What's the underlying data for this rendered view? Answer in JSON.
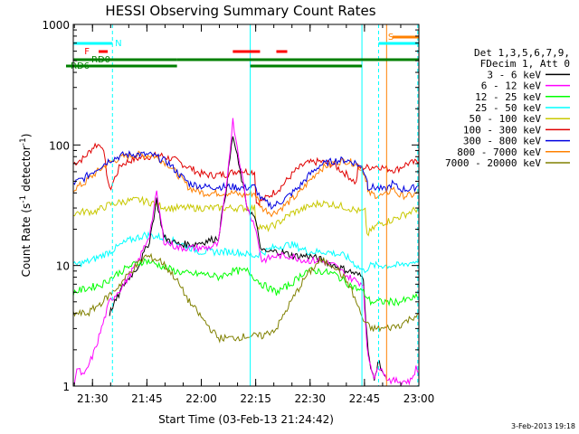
{
  "chart_data": {
    "type": "line",
    "title": "HESSI Observing Summary Count Rates",
    "xlabel": "Start Time (03-Feb-13 21:24:42)",
    "ylabel": "Count Rate (s⁻¹ detector⁻¹)",
    "ylabel_main": "Count Rate (s",
    "ylabel_sup1": "-1",
    "ylabel_mid": " detector",
    "ylabel_sup2": "-1",
    "ylabel_end": ")",
    "timestamp": "3-Feb-2013 19:18",
    "yscale": "log",
    "ylim": [
      1,
      1000
    ],
    "xlim_minutes": [
      0,
      95.3
    ],
    "x_ticks": [
      {
        "label": "21:30",
        "min": 5.3
      },
      {
        "label": "21:45",
        "min": 20.3
      },
      {
        "label": "22:00",
        "min": 35.3
      },
      {
        "label": "22:15",
        "min": 50.3
      },
      {
        "label": "22:30",
        "min": 65.3
      },
      {
        "label": "22:45",
        "min": 80.3
      },
      {
        "label": "23:00",
        "min": 95.3
      }
    ],
    "y_ticks": [
      {
        "label": "1",
        "value": 1
      },
      {
        "label": "10",
        "value": 10
      },
      {
        "label": "100",
        "value": 100
      },
      {
        "label": "1000",
        "value": 1000
      }
    ],
    "legend": {
      "header": [
        "Det 1,3,5,6,7,9,",
        "FDecim 1, Att 0"
      ],
      "placement": "right",
      "entries": [
        {
          "label": "3 - 6 keV",
          "color": "#000000"
        },
        {
          "label": "6 - 12 keV",
          "color": "#ff00ff"
        },
        {
          "label": "12 - 25 keV",
          "color": "#00ff00"
        },
        {
          "label": "25 - 50 keV",
          "color": "#00ffff"
        },
        {
          "label": "50 - 100 keV",
          "color": "#c8c800"
        },
        {
          "label": "100 - 300 keV",
          "color": "#e00000"
        },
        {
          "label": "300 - 800 keV",
          "color": "#0000e0"
        },
        {
          "label": "800 - 7000 keV",
          "color": "#ff8000"
        },
        {
          "label": "7000 - 20000 keV",
          "color": "#808000"
        }
      ]
    },
    "flags": [
      {
        "label": "N",
        "color": "#00ffff"
      },
      {
        "label": "F",
        "color": "#ff0000"
      },
      {
        "label": "RD0",
        "color": "#008000"
      },
      {
        "label": "RD6",
        "color": "#008000"
      },
      {
        "label": "S",
        "color": "#ff8000"
      }
    ],
    "series": [
      {
        "key": "e100_300",
        "color": "#e00000",
        "points": [
          [
            0,
            70
          ],
          [
            3,
            78
          ],
          [
            6,
            100
          ],
          [
            8,
            100
          ],
          [
            10,
            42
          ],
          [
            13,
            68
          ],
          [
            16,
            75
          ],
          [
            20,
            80
          ],
          [
            24,
            82
          ],
          [
            28,
            75
          ],
          [
            32,
            65
          ],
          [
            35,
            58
          ],
          [
            38,
            56
          ],
          [
            42,
            57
          ],
          [
            46,
            62
          ],
          [
            48,
            60
          ],
          [
            50,
            60
          ],
          [
            50.5,
            33
          ],
          [
            53,
            36
          ],
          [
            57,
            44
          ],
          [
            61,
            60
          ],
          [
            64,
            70
          ],
          [
            68,
            73
          ],
          [
            72,
            68
          ],
          [
            76,
            55
          ],
          [
            78,
            48
          ],
          [
            78.5,
            65
          ],
          [
            81,
            65
          ],
          [
            84,
            67
          ],
          [
            86,
            64
          ],
          [
            89,
            62
          ],
          [
            92,
            70
          ],
          [
            95.3,
            72
          ]
        ]
      },
      {
        "key": "e800_7000",
        "color": "#ff8000",
        "points": [
          [
            0,
            43
          ],
          [
            3,
            48
          ],
          [
            6,
            58
          ],
          [
            10,
            72
          ],
          [
            14,
            80
          ],
          [
            18,
            83
          ],
          [
            22,
            82
          ],
          [
            26,
            70
          ],
          [
            29,
            56
          ],
          [
            32,
            44
          ],
          [
            36,
            40
          ],
          [
            40,
            40
          ],
          [
            44,
            40
          ],
          [
            47,
            38
          ],
          [
            50,
            40
          ],
          [
            52,
            30
          ],
          [
            55,
            27
          ],
          [
            58,
            31
          ],
          [
            62,
            39
          ],
          [
            65,
            50
          ],
          [
            68,
            63
          ],
          [
            72,
            72
          ],
          [
            75,
            74
          ],
          [
            78,
            70
          ],
          [
            80,
            60
          ],
          [
            81,
            50
          ],
          [
            81.2,
            40
          ],
          [
            84,
            38
          ],
          [
            86,
            38
          ],
          [
            88,
            44
          ],
          [
            90,
            38
          ],
          [
            93,
            38
          ],
          [
            95.3,
            40
          ]
        ]
      },
      {
        "key": "e300_800",
        "color": "#0000e0",
        "points": [
          [
            0,
            48
          ],
          [
            3,
            53
          ],
          [
            6,
            62
          ],
          [
            10,
            75
          ],
          [
            14,
            83
          ],
          [
            18,
            84
          ],
          [
            22,
            82
          ],
          [
            26,
            72
          ],
          [
            29,
            58
          ],
          [
            32,
            48
          ],
          [
            36,
            45
          ],
          [
            40,
            45
          ],
          [
            44,
            45
          ],
          [
            47,
            44
          ],
          [
            50,
            45
          ],
          [
            52,
            35
          ],
          [
            55,
            31
          ],
          [
            58,
            35
          ],
          [
            62,
            44
          ],
          [
            65,
            56
          ],
          [
            68,
            68
          ],
          [
            72,
            74
          ],
          [
            75,
            75
          ],
          [
            78,
            71
          ],
          [
            80,
            62
          ],
          [
            81,
            53
          ],
          [
            81.2,
            45
          ],
          [
            84,
            44
          ],
          [
            86,
            42
          ],
          [
            88,
            48
          ],
          [
            90,
            43
          ],
          [
            93,
            43
          ],
          [
            95.3,
            46
          ]
        ]
      },
      {
        "key": "e50_100",
        "color": "#c8c800",
        "points": [
          [
            0,
            27
          ],
          [
            3,
            28
          ],
          [
            6,
            28
          ],
          [
            10,
            32
          ],
          [
            14,
            34
          ],
          [
            18,
            35
          ],
          [
            22,
            33
          ],
          [
            26,
            30
          ],
          [
            29,
            30
          ],
          [
            32,
            30
          ],
          [
            36,
            30
          ],
          [
            40,
            30
          ],
          [
            44,
            30
          ],
          [
            47,
            30
          ],
          [
            50,
            30
          ],
          [
            50.5,
            22
          ],
          [
            53,
            20
          ],
          [
            56,
            22
          ],
          [
            60,
            27
          ],
          [
            64,
            30
          ],
          [
            68,
            33
          ],
          [
            72,
            32
          ],
          [
            76,
            30
          ],
          [
            79,
            28
          ],
          [
            80.5,
            28
          ],
          [
            81,
            18
          ],
          [
            84,
            22
          ],
          [
            88,
            24
          ],
          [
            92,
            27
          ],
          [
            95.3,
            30
          ]
        ]
      },
      {
        "key": "e25_50",
        "color": "#00ffff",
        "points": [
          [
            0,
            10
          ],
          [
            5,
            11
          ],
          [
            10,
            13
          ],
          [
            15,
            16
          ],
          [
            20,
            18
          ],
          [
            25,
            17
          ],
          [
            30,
            15
          ],
          [
            35,
            13
          ],
          [
            40,
            13
          ],
          [
            45,
            13
          ],
          [
            50,
            12
          ],
          [
            55,
            14
          ],
          [
            60,
            15
          ],
          [
            65,
            13
          ],
          [
            70,
            13
          ],
          [
            75,
            12
          ],
          [
            80,
            9
          ],
          [
            82,
            10
          ],
          [
            86,
            10
          ],
          [
            90,
            10
          ],
          [
            95.3,
            11
          ]
        ]
      },
      {
        "key": "e3_6",
        "color": "#000000",
        "points": [
          [
            10,
            4
          ],
          [
            14,
            7
          ],
          [
            18,
            10
          ],
          [
            21,
            16
          ],
          [
            23,
            35
          ],
          [
            25,
            17
          ],
          [
            29,
            15
          ],
          [
            33,
            15
          ],
          [
            37,
            16
          ],
          [
            40,
            17
          ],
          [
            42,
            40
          ],
          [
            44,
            120
          ],
          [
            46,
            60
          ],
          [
            48,
            30
          ],
          [
            50,
            25
          ],
          [
            52,
            13
          ],
          [
            54,
            13
          ],
          [
            57,
            13
          ],
          [
            61,
            12
          ],
          [
            65,
            12
          ],
          [
            69,
            11
          ],
          [
            72,
            10
          ],
          [
            76,
            9
          ],
          [
            80,
            8
          ],
          [
            81,
            2.5
          ],
          [
            82,
            1.4
          ],
          [
            83,
            1.1
          ],
          [
            84,
            1.6
          ],
          [
            86,
            1.2
          ]
        ]
      },
      {
        "key": "e6_12",
        "color": "#ff00ff",
        "points": [
          [
            0,
            1
          ],
          [
            1,
            1.4
          ],
          [
            3,
            1.2
          ],
          [
            6,
            2
          ],
          [
            10,
            5
          ],
          [
            14,
            7
          ],
          [
            18,
            11
          ],
          [
            21,
            18
          ],
          [
            23,
            40
          ],
          [
            25,
            16
          ],
          [
            29,
            14
          ],
          [
            33,
            14
          ],
          [
            37,
            14
          ],
          [
            40,
            15
          ],
          [
            42,
            40
          ],
          [
            44,
            160
          ],
          [
            46,
            70
          ],
          [
            48,
            30
          ],
          [
            50,
            22
          ],
          [
            52,
            11
          ],
          [
            56,
            12
          ],
          [
            60,
            12
          ],
          [
            64,
            11
          ],
          [
            68,
            11
          ],
          [
            72,
            10
          ],
          [
            76,
            8
          ],
          [
            80,
            7
          ],
          [
            81,
            2
          ],
          [
            82,
            1.5
          ],
          [
            83,
            1.2
          ],
          [
            85,
            1.5
          ],
          [
            86,
            1.2
          ],
          [
            88,
            1.1
          ],
          [
            93,
            1.1
          ],
          [
            94.5,
            1.4
          ],
          [
            95.3,
            1.2
          ]
        ]
      },
      {
        "key": "e12_25",
        "color": "#00ff00",
        "points": [
          [
            0,
            6
          ],
          [
            4,
            6.5
          ],
          [
            8,
            7
          ],
          [
            12,
            8.5
          ],
          [
            16,
            10
          ],
          [
            20,
            11
          ],
          [
            24,
            10
          ],
          [
            28,
            9
          ],
          [
            32,
            8.5
          ],
          [
            36,
            8.5
          ],
          [
            40,
            8
          ],
          [
            44,
            9
          ],
          [
            48,
            9
          ],
          [
            52,
            7
          ],
          [
            56,
            6
          ],
          [
            60,
            7
          ],
          [
            64,
            9
          ],
          [
            68,
            9
          ],
          [
            72,
            8.5
          ],
          [
            76,
            7
          ],
          [
            80,
            6
          ],
          [
            82,
            5
          ],
          [
            86,
            5
          ],
          [
            90,
            5
          ],
          [
            95.3,
            5.5
          ]
        ]
      },
      {
        "key": "e7000_20000",
        "color": "#808000",
        "points": [
          [
            0,
            4
          ],
          [
            4,
            4
          ],
          [
            8,
            5
          ],
          [
            12,
            6.5
          ],
          [
            16,
            9
          ],
          [
            20,
            12
          ],
          [
            24,
            11
          ],
          [
            28,
            8
          ],
          [
            32,
            5
          ],
          [
            36,
            3.5
          ],
          [
            40,
            2.5
          ],
          [
            44,
            2.5
          ],
          [
            48,
            2.6
          ],
          [
            52,
            2.6
          ],
          [
            56,
            3
          ],
          [
            60,
            5
          ],
          [
            64,
            8
          ],
          [
            68,
            11
          ],
          [
            72,
            10
          ],
          [
            76,
            7
          ],
          [
            78,
            5
          ],
          [
            80,
            3.5
          ],
          [
            82,
            3
          ],
          [
            86,
            3
          ],
          [
            90,
            3.2
          ],
          [
            95.3,
            4
          ]
        ]
      }
    ]
  }
}
